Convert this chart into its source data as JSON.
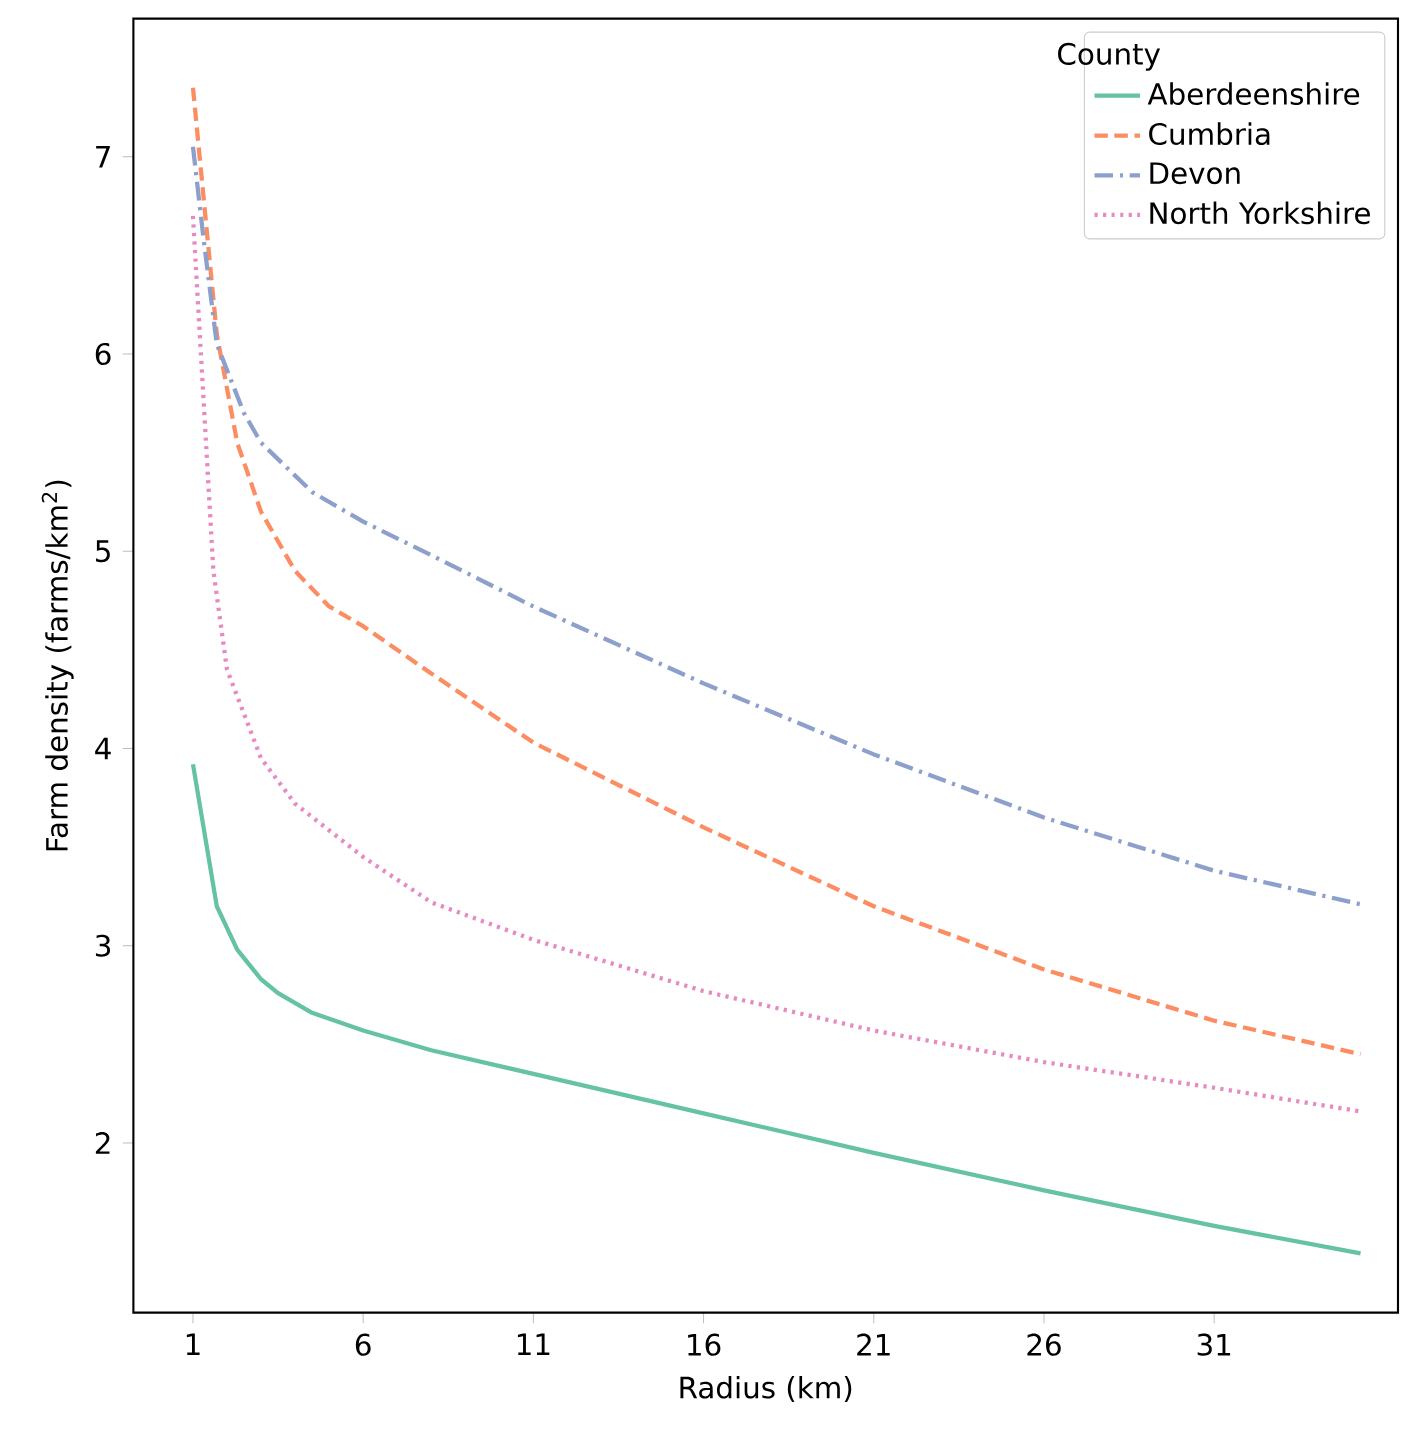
{
  "chart_data": {
    "type": "line",
    "xlabel": "Radius (km)",
    "ylabel": "Farm density (farms/km$^{2}$)",
    "legend_title": "County",
    "legend": "top right",
    "xlim": [
      -0.75,
      36.4
    ],
    "ylim": [
      1.14,
      7.7
    ],
    "xticks": [
      1,
      6,
      11,
      16,
      21,
      26,
      31
    ],
    "yticks": [
      2,
      3,
      4,
      5,
      6,
      7
    ],
    "series": [
      {
        "name": "Aberdeenshire",
        "color": "#66c2a5",
        "line_style": "solid",
        "x": [
          1,
          1.7,
          2.3,
          3,
          3.5,
          4.5,
          6,
          8,
          11,
          16,
          21,
          26,
          31,
          35.3
        ],
        "values": [
          3.92,
          3.2,
          2.98,
          2.83,
          2.76,
          2.66,
          2.57,
          2.47,
          2.35,
          2.15,
          1.95,
          1.76,
          1.58,
          1.44
        ]
      },
      {
        "name": "Cumbria",
        "color": "#fc8d62",
        "line_style": "dashed",
        "x": [
          1,
          1.7,
          2.3,
          3,
          4,
          5,
          6,
          8,
          11,
          16,
          21,
          26,
          31,
          35.3
        ],
        "values": [
          7.35,
          6.1,
          5.55,
          5.2,
          4.9,
          4.72,
          4.62,
          4.38,
          4.03,
          3.6,
          3.2,
          2.88,
          2.62,
          2.45
        ]
      },
      {
        "name": "Devon",
        "color": "#8da0cb",
        "line_style": "dashdot",
        "x": [
          1,
          1.3,
          1.7,
          2.5,
          3,
          4.5,
          6,
          8,
          11,
          16,
          21,
          26,
          31,
          35.3
        ],
        "values": [
          7.05,
          6.6,
          6.05,
          5.7,
          5.55,
          5.3,
          5.15,
          4.98,
          4.72,
          4.33,
          3.97,
          3.65,
          3.38,
          3.21
        ]
      },
      {
        "name": "North Yorkshire",
        "color": "#e78ac3",
        "line_style": "dotted",
        "x": [
          1,
          1.3,
          1.6,
          2,
          3,
          4,
          6,
          8,
          11,
          16,
          21,
          26,
          31,
          35.3
        ],
        "values": [
          6.7,
          5.8,
          4.9,
          4.4,
          3.95,
          3.72,
          3.45,
          3.22,
          3.03,
          2.77,
          2.57,
          2.41,
          2.28,
          2.16
        ]
      }
    ]
  }
}
